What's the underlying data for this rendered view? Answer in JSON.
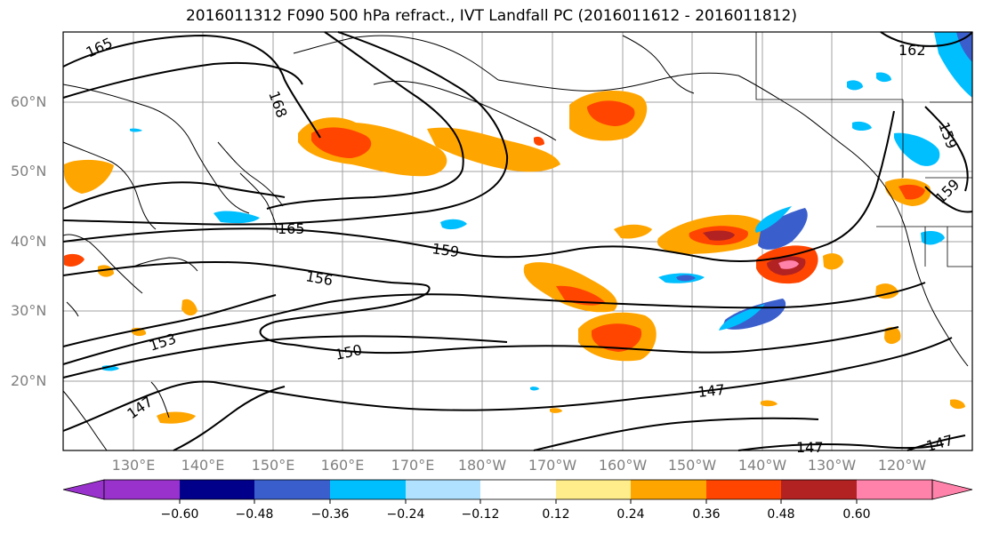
{
  "title": "2016011312 F090 500 hPa refract., IVT Landfall PC (2016011612 - 2016011812)",
  "lat_labels": [
    "60°N",
    "50°N",
    "40°N",
    "30°N",
    "20°N"
  ],
  "lon_labels": [
    "130°E",
    "140°E",
    "150°E",
    "160°E",
    "170°E",
    "180°W",
    "170°W",
    "160°W",
    "150°W",
    "140°W",
    "130°W",
    "120°W"
  ],
  "contour_labels": [
    "165",
    "168",
    "165",
    "159",
    "156",
    "153",
    "150",
    "147",
    "147",
    "147",
    "147",
    "162",
    "159",
    "159"
  ],
  "colorbar": {
    "ticks": [
      "−0.60",
      "−0.48",
      "−0.36",
      "−0.24",
      "−0.12",
      "0.12",
      "0.24",
      "0.36",
      "0.48",
      "0.60"
    ],
    "colors": [
      "#9932cc",
      "#00008b",
      "#3a5fcd",
      "#00bfff",
      "#b0e2ff",
      "#ffffff",
      "#ffec8b",
      "#ffa500",
      "#ff4500",
      "#b22222",
      "#ff82ab"
    ]
  },
  "palette": {
    "contour": "#000000",
    "coast": "#000000",
    "grid": "#a0a0a0"
  }
}
